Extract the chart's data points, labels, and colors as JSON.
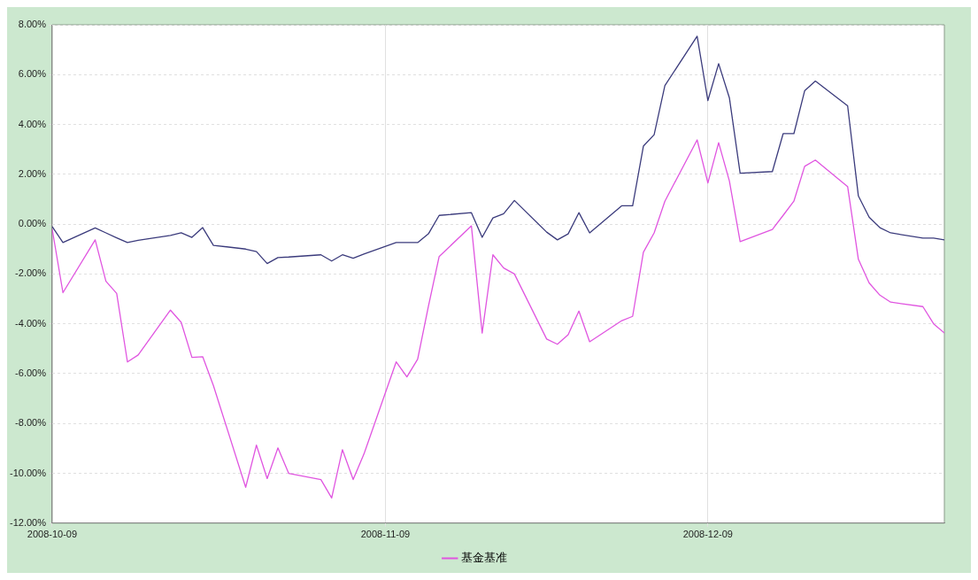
{
  "chart_data": {
    "type": "line",
    "x": [
      "2008-10-09",
      "2008-10-10",
      "2008-10-13",
      "2008-10-14",
      "2008-10-15",
      "2008-10-16",
      "2008-10-17",
      "2008-10-20",
      "2008-10-21",
      "2008-10-22",
      "2008-10-23",
      "2008-10-24",
      "2008-10-27",
      "2008-10-28",
      "2008-10-29",
      "2008-10-30",
      "2008-10-31",
      "2008-11-03",
      "2008-11-04",
      "2008-11-05",
      "2008-11-06",
      "2008-11-07",
      "2008-11-10",
      "2008-11-11",
      "2008-11-12",
      "2008-11-13",
      "2008-11-14",
      "2008-11-17",
      "2008-11-18",
      "2008-11-19",
      "2008-11-20",
      "2008-11-21",
      "2008-11-24",
      "2008-11-25",
      "2008-11-26",
      "2008-11-27",
      "2008-11-28",
      "2008-12-01",
      "2008-12-02",
      "2008-12-03",
      "2008-12-04",
      "2008-12-05",
      "2008-12-08",
      "2008-12-09",
      "2008-12-10",
      "2008-12-11",
      "2008-12-12",
      "2008-12-15",
      "2008-12-16",
      "2008-12-17",
      "2008-12-18",
      "2008-12-19",
      "2008-12-22",
      "2008-12-23",
      "2008-12-24",
      "2008-12-25",
      "2008-12-26",
      "2008-12-29",
      "2008-12-30",
      "2008-12-31"
    ],
    "series": [
      {
        "color": "#3b3b7c",
        "values": [
          -0.1,
          -0.74,
          -0.15,
          -0.35,
          -0.55,
          -0.74,
          -0.65,
          -0.45,
          -0.35,
          -0.53,
          -0.14,
          -0.85,
          -1.0,
          -1.1,
          -1.58,
          -1.34,
          -1.32,
          -1.23,
          -1.48,
          -1.23,
          -1.37,
          -1.2,
          -0.74,
          -0.74,
          -0.74,
          -0.39,
          0.35,
          0.46,
          -0.53,
          0.25,
          0.42,
          0.95,
          -0.32,
          -0.63,
          -0.39,
          0.46,
          -0.35,
          0.74,
          0.74,
          3.13,
          3.59,
          5.56,
          7.54,
          4.96,
          6.44,
          5.07,
          2.04,
          2.11,
          3.63,
          3.63,
          5.35,
          5.74,
          4.75,
          1.13,
          0.28,
          -0.14,
          -0.35,
          -0.56,
          -0.56,
          -0.63
        ]
      },
      {
        "name": "基金基准",
        "color": "#e055e0",
        "values": [
          -0.2,
          -2.75,
          -0.63,
          -2.29,
          -2.78,
          -5.53,
          -5.25,
          -3.45,
          -3.94,
          -5.35,
          -5.32,
          -6.48,
          -10.56,
          -8.87,
          -10.21,
          -8.98,
          -10.0,
          -10.25,
          -10.99,
          -9.05,
          -10.25,
          -9.23,
          -5.53,
          -6.13,
          -5.42,
          -3.3,
          -1.3,
          -0.07,
          -4.37,
          -1.23,
          -1.76,
          -2.0,
          -4.61,
          -4.82,
          -4.44,
          -3.49,
          -4.72,
          -3.87,
          -3.7,
          -1.13,
          -0.35,
          0.92,
          3.38,
          1.65,
          3.27,
          1.73,
          -0.7,
          -0.21,
          0.35,
          0.92,
          2.32,
          2.57,
          1.51,
          -1.41,
          -2.36,
          -2.85,
          -3.13,
          -3.31,
          -4.0,
          -4.37
        ]
      }
    ],
    "xlim": [
      "2008-10-09",
      "2008-12-31"
    ],
    "xticks": [
      {
        "value": "2008-10-09",
        "label": "2008-10-09"
      },
      {
        "value": "2008-11-09",
        "label": "2008-11-09"
      },
      {
        "value": "2008-12-09",
        "label": "2008-12-09"
      }
    ],
    "ylim": [
      -12,
      8
    ],
    "yticks": [
      {
        "value": -12,
        "label": "-12.00%"
      },
      {
        "value": -10,
        "label": "-10.00%"
      },
      {
        "value": -8,
        "label": "-8.00%"
      },
      {
        "value": -6,
        "label": "-6.00%"
      },
      {
        "value": -4,
        "label": "-4.00%"
      },
      {
        "value": -2,
        "label": "-2.00%"
      },
      {
        "value": 0,
        "label": "0.00%"
      },
      {
        "value": 2,
        "label": "2.00%"
      },
      {
        "value": 4,
        "label": "4.00%"
      },
      {
        "value": 6,
        "label": "6.00%"
      },
      {
        "value": 8,
        "label": "8.00%"
      }
    ],
    "grid": true,
    "legend": "bottom",
    "marker": "none",
    "line_style": "solid"
  }
}
